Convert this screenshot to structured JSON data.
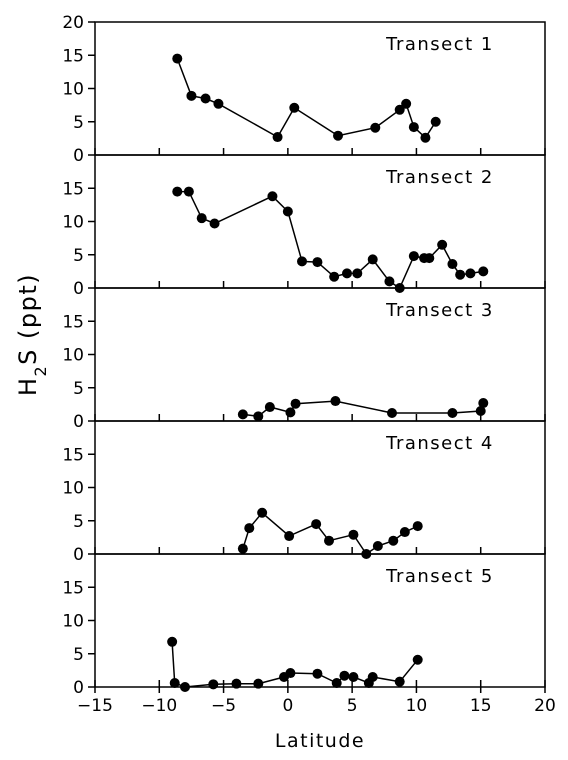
{
  "chart_data": [
    {
      "type": "line",
      "title": "Transect 1",
      "x": [
        -8.6,
        -7.5,
        -6.4,
        -5.4,
        -0.8,
        0.5,
        3.9,
        6.8,
        8.7,
        9.2,
        9.8,
        10.7,
        11.5
      ],
      "values": [
        14.5,
        8.9,
        8.5,
        7.7,
        2.7,
        7.1,
        2.9,
        4.1,
        6.8,
        7.7,
        4.2,
        2.6,
        5.0
      ],
      "xlim": [
        -15,
        20
      ],
      "xticks": [
        -15,
        -10,
        -5,
        0,
        5,
        10,
        15,
        20
      ],
      "ylim": [
        0,
        20
      ],
      "yticks": [
        0,
        5,
        10,
        15,
        20
      ]
    },
    {
      "type": "line",
      "title": "Transect 2",
      "x": [
        -8.6,
        -7.7,
        -6.7,
        -5.7,
        -1.2,
        0.0,
        1.1,
        2.3,
        3.6,
        4.6,
        5.4,
        6.6,
        7.9,
        8.7,
        9.8,
        10.6,
        11.0,
        12.0,
        12.8,
        13.4,
        14.2,
        15.2
      ],
      "values": [
        14.5,
        14.5,
        10.5,
        9.7,
        13.8,
        11.5,
        4.0,
        3.9,
        1.7,
        2.2,
        2.2,
        4.3,
        1.0,
        0.0,
        4.8,
        4.5,
        4.5,
        6.5,
        3.6,
        2.0,
        2.2,
        2.5
      ],
      "xlim": [
        -15,
        20
      ],
      "xticks": [
        -15,
        -10,
        -5,
        0,
        5,
        10,
        15,
        20
      ],
      "ylim": [
        0,
        20
      ],
      "yticks": [
        0,
        5,
        10,
        15
      ]
    },
    {
      "type": "line",
      "title": "Transect 3",
      "ylabel": [
        "H",
        "2",
        "S   (ppt)"
      ],
      "x": [
        -3.5,
        -2.3,
        -1.4,
        0.2,
        0.6,
        3.7,
        8.1,
        12.8,
        15.0,
        15.2
      ],
      "values": [
        1.0,
        0.7,
        2.1,
        1.3,
        2.6,
        3.0,
        1.2,
        1.2,
        1.5,
        2.7
      ],
      "xlim": [
        -15,
        20
      ],
      "xticks": [
        -15,
        -10,
        -5,
        0,
        5,
        10,
        15,
        20
      ],
      "ylim": [
        0,
        20
      ],
      "yticks": [
        0,
        5,
        10,
        15
      ]
    },
    {
      "type": "line",
      "title": "Transect 4",
      "x": [
        -3.5,
        -3.0,
        -2.0,
        0.1,
        2.2,
        3.2,
        5.1,
        6.1,
        7.0,
        8.2,
        9.1,
        10.1
      ],
      "values": [
        0.8,
        3.9,
        6.2,
        2.7,
        4.5,
        2.0,
        2.9,
        0.0,
        1.2,
        2.0,
        3.3,
        4.2
      ],
      "xlim": [
        -15,
        20
      ],
      "xticks": [
        -15,
        -10,
        -5,
        0,
        5,
        10,
        15,
        20
      ],
      "ylim": [
        0,
        20
      ],
      "yticks": [
        0,
        5,
        10,
        15
      ]
    },
    {
      "type": "line",
      "title": "Transect 5",
      "xlabel": "Latitude",
      "x": [
        -9.0,
        -8.8,
        -8.0,
        -5.8,
        -4.0,
        -2.3,
        -0.3,
        0.2,
        2.3,
        3.8,
        4.4,
        5.1,
        6.3,
        6.6,
        8.7,
        10.1
      ],
      "values": [
        6.8,
        0.6,
        0.0,
        0.4,
        0.5,
        0.5,
        1.5,
        2.1,
        2.0,
        0.6,
        1.7,
        1.5,
        0.6,
        1.5,
        0.8,
        4.1
      ],
      "xlim": [
        -15,
        20
      ],
      "xticks": [
        {
          "value": -15,
          "label": "−15"
        },
        {
          "value": -10,
          "label": "−10"
        },
        {
          "value": -5,
          "label": "−5"
        },
        0,
        5,
        10,
        15,
        20
      ],
      "ylim": [
        0,
        20
      ],
      "yticks": [
        0,
        5,
        10,
        15
      ]
    }
  ]
}
